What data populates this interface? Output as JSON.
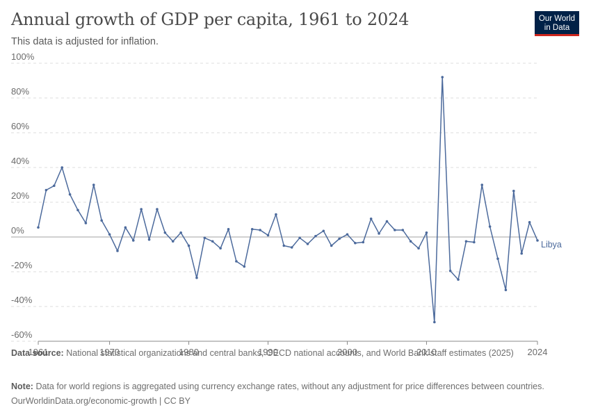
{
  "header": {
    "title": "Annual growth of GDP per capita, 1961 to 2024",
    "subtitle": "This data is adjusted for inflation.",
    "logo_line1": "Our World",
    "logo_line2": "in Data"
  },
  "footer": {
    "source_label": "Data source:",
    "source_text": "National statistical organizations and central banks, OECD national accounts, and World Bank staff estimates (2025)",
    "note_label": "Note:",
    "note_text": "Data for world regions is aggregated using currency exchange rates, without any adjustment for price differences between countries.",
    "url_text": "OurWorldinData.org/economic-growth | CC BY"
  },
  "colors": {
    "series": "#4c6a9c",
    "grid": "#dddddd",
    "zero_line": "#a0a0a0",
    "text": "#5b5b5b",
    "logo_bg": "#002147",
    "logo_accent": "#ce261e"
  },
  "chart_data": {
    "type": "line",
    "title": "Annual growth of GDP per capita, 1961 to 2024",
    "subtitle": "This data is adjusted for inflation.",
    "xlabel": "",
    "ylabel": "",
    "xlim": [
      1961,
      2024
    ],
    "ylim": [
      -60,
      100
    ],
    "y_ticks": [
      -60,
      -40,
      -20,
      0,
      20,
      40,
      60,
      80,
      100
    ],
    "y_tick_labels": [
      "-60%",
      "-40%",
      "-20%",
      "0%",
      "20%",
      "40%",
      "60%",
      "80%",
      "100%"
    ],
    "x_ticks": [
      1961,
      1970,
      1980,
      1990,
      2000,
      2010,
      2024
    ],
    "x_tick_labels": [
      "1961",
      "1970",
      "1980",
      "1990",
      "2000",
      "2010",
      "2024"
    ],
    "grid": true,
    "legend": "inline label at end of line",
    "series": [
      {
        "name": "Libya",
        "x": [
          1961,
          1962,
          1963,
          1964,
          1965,
          1966,
          1967,
          1968,
          1969,
          1970,
          1971,
          1972,
          1973,
          1974,
          1975,
          1976,
          1977,
          1978,
          1979,
          1980,
          1981,
          1982,
          1983,
          1984,
          1985,
          1986,
          1987,
          1988,
          1989,
          1990,
          1991,
          1992,
          1993,
          1994,
          1995,
          1996,
          1997,
          1998,
          1999,
          2000,
          2001,
          2002,
          2003,
          2004,
          2005,
          2006,
          2007,
          2008,
          2009,
          2010,
          2011,
          2012,
          2013,
          2014,
          2015,
          2016,
          2017,
          2018,
          2019,
          2020,
          2021,
          2022,
          2023,
          2024
        ],
        "values": [
          5.5,
          27,
          29.5,
          40,
          24.5,
          15.5,
          8,
          30,
          9.5,
          1.5,
          -8,
          5.5,
          -2,
          16,
          -1.5,
          16,
          2.5,
          -2.5,
          2.5,
          -5,
          -23.5,
          -0.5,
          -2.5,
          -6.5,
          4.5,
          -14,
          -17,
          4.5,
          4,
          1,
          13,
          -5,
          -6,
          -0.5,
          -4,
          0.5,
          3.5,
          -5,
          -1,
          1.5,
          -3.5,
          -3,
          10.5,
          2,
          9,
          4,
          4,
          -2.5,
          -6.5,
          2.5,
          -49,
          92,
          -19.5,
          -24.5,
          -2.5,
          -3,
          30,
          6,
          -12.5,
          -30.5,
          26.5,
          -9.5,
          8.5,
          -2
        ]
      }
    ]
  }
}
